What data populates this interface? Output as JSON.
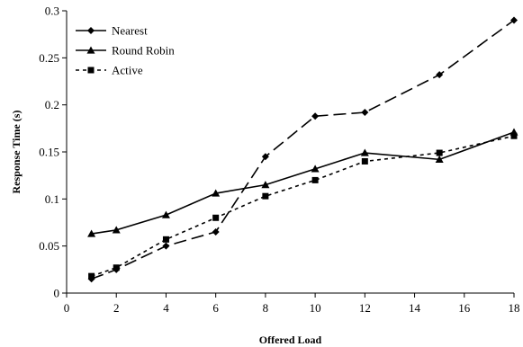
{
  "chart_data": {
    "type": "line",
    "xlabel": "Offered Load",
    "ylabel": "Response Time (s)",
    "xlim": [
      0,
      18
    ],
    "ylim": [
      0,
      0.3
    ],
    "x_ticks": [
      0,
      2,
      4,
      6,
      8,
      10,
      12,
      14,
      16,
      18
    ],
    "y_ticks": [
      0,
      0.05,
      0.1,
      0.15,
      0.2,
      0.25,
      0.3
    ],
    "x_tick_labels": [
      "0",
      "2",
      "4",
      "6",
      "8",
      "10",
      "12",
      "14",
      "16",
      "18"
    ],
    "y_tick_labels": [
      "0",
      "0.05",
      "0.1",
      "0.15",
      "0.2",
      "0.25",
      "0.3"
    ],
    "grid": false,
    "legend_position": "top-left",
    "series": [
      {
        "name": "Nearest",
        "marker": "diamond",
        "line_style": "long-dash",
        "x": [
          1,
          2,
          4,
          6,
          8,
          10,
          12,
          15,
          18
        ],
        "values": [
          0.015,
          0.025,
          0.05,
          0.065,
          0.145,
          0.188,
          0.192,
          0.232,
          0.29
        ]
      },
      {
        "name": "Round Robin",
        "marker": "triangle",
        "line_style": "solid",
        "x": [
          1,
          2,
          4,
          6,
          8,
          10,
          12,
          15,
          18
        ],
        "values": [
          0.063,
          0.067,
          0.083,
          0.106,
          0.115,
          0.132,
          0.149,
          0.142,
          0.171
        ]
      },
      {
        "name": "Active",
        "marker": "square",
        "line_style": "short-dash",
        "x": [
          1,
          2,
          4,
          6,
          8,
          10,
          12,
          15,
          18
        ],
        "values": [
          0.018,
          0.027,
          0.057,
          0.08,
          0.103,
          0.12,
          0.14,
          0.149,
          0.167
        ]
      }
    ]
  },
  "colors": {
    "line": "#000000",
    "background": "#ffffff"
  }
}
